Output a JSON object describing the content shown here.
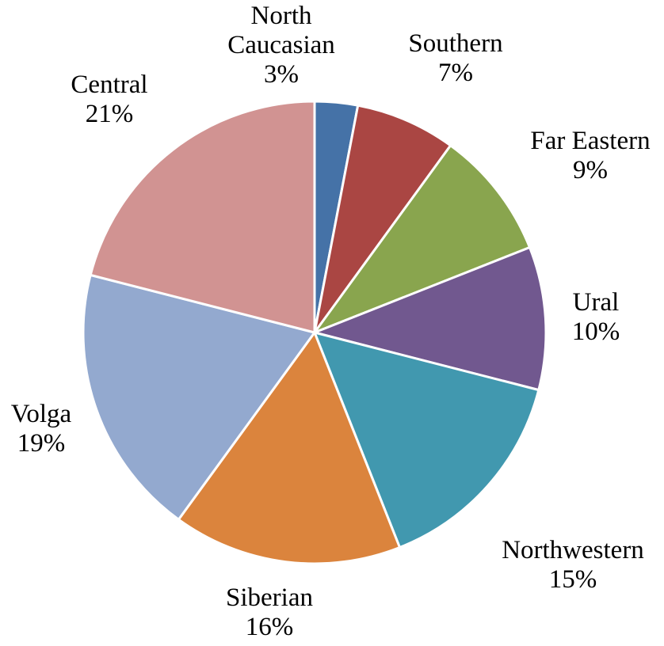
{
  "chart_data": {
    "type": "pie",
    "title": "",
    "slices": [
      {
        "label": "North Caucasian",
        "label_lines": [
          "North",
          "Caucasian"
        ],
        "value": 3,
        "pct_text": "3%",
        "color": "#4572a7"
      },
      {
        "label": "Southern",
        "label_lines": [
          "Southern"
        ],
        "value": 7,
        "pct_text": "7%",
        "color": "#aa4643"
      },
      {
        "label": "Far Eastern",
        "label_lines": [
          "Far Eastern"
        ],
        "value": 9,
        "pct_text": "9%",
        "color": "#89a54e"
      },
      {
        "label": "Ural",
        "label_lines": [
          "Ural"
        ],
        "value": 10,
        "pct_text": "10%",
        "color": "#71588f"
      },
      {
        "label": "Northwestern",
        "label_lines": [
          "Northwestern"
        ],
        "value": 15,
        "pct_text": "15%",
        "color": "#4198af"
      },
      {
        "label": "Siberian",
        "label_lines": [
          "Siberian"
        ],
        "value": 16,
        "pct_text": "16%",
        "color": "#db843d"
      },
      {
        "label": "Volga",
        "label_lines": [
          "Volga"
        ],
        "value": 19,
        "pct_text": "19%",
        "color": "#93a9cf"
      },
      {
        "label": "Central",
        "label_lines": [
          "Central"
        ],
        "value": 21,
        "pct_text": "21%",
        "color": "#d19392"
      }
    ],
    "start_angle": "12 o'clock",
    "direction": "clockwise",
    "legend": "none"
  }
}
